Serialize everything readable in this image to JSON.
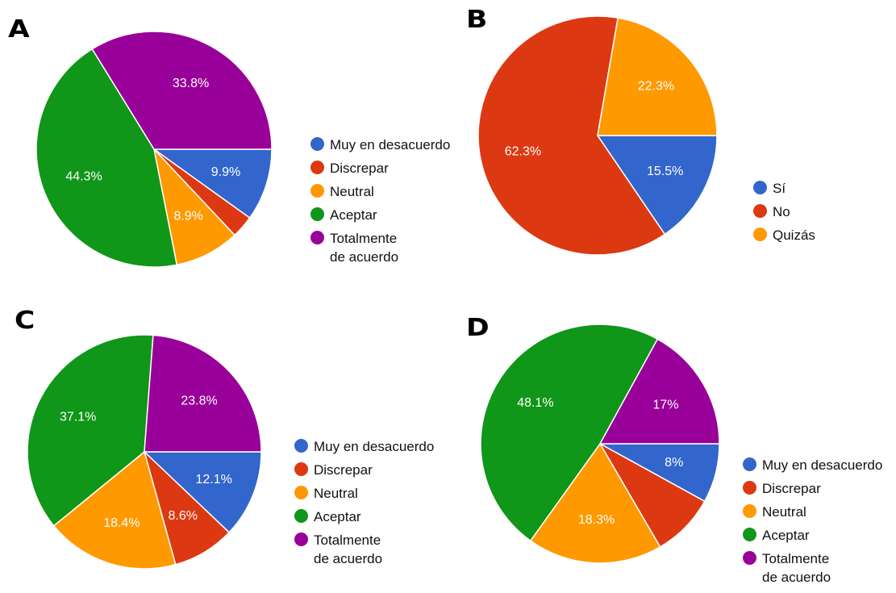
{
  "chart_data": [
    {
      "panel": "A",
      "type": "pie",
      "categories": [
        "Muy en desacuerdo",
        "Discrepar",
        "Neutral",
        "Aceptar",
        "Totalmente de acuerdo"
      ],
      "values": [
        9.9,
        3.1,
        8.9,
        44.3,
        33.8
      ],
      "data_labels": [
        "9.9%",
        "",
        "8.9%",
        "44.3%",
        "33.8%"
      ],
      "colors": [
        "#3366cc",
        "#dc3912",
        "#ff9900",
        "#109618",
        "#990099"
      ],
      "legend": [
        "Muy en desacuerdo",
        "Discrepar",
        "Neutral",
        "Aceptar",
        "Totalmente\nde acuerdo"
      ]
    },
    {
      "panel": "B",
      "type": "pie",
      "categories": [
        "Sí",
        "No",
        "Quizás"
      ],
      "values": [
        15.5,
        62.3,
        22.3
      ],
      "data_labels": [
        "15.5%",
        "62.3%",
        "22.3%"
      ],
      "colors": [
        "#3366cc",
        "#dc3912",
        "#ff9900"
      ],
      "legend": [
        "Sí",
        "No",
        "Quizás"
      ]
    },
    {
      "panel": "C",
      "type": "pie",
      "categories": [
        "Muy en desacuerdo",
        "Discrepar",
        "Neutral",
        "Aceptar",
        "Totalmente de acuerdo"
      ],
      "values": [
        12.1,
        8.6,
        18.4,
        37.1,
        23.8
      ],
      "data_labels": [
        "12.1%",
        "8.6%",
        "18.4%",
        "37.1%",
        "23.8%"
      ],
      "colors": [
        "#3366cc",
        "#dc3912",
        "#ff9900",
        "#109618",
        "#990099"
      ],
      "legend": [
        "Muy en desacuerdo",
        "Discrepar",
        "Neutral",
        "Aceptar",
        "Totalmente\nde acuerdo"
      ]
    },
    {
      "panel": "D",
      "type": "pie",
      "categories": [
        "Muy en desacuerdo",
        "Discrepar",
        "Neutral",
        "Aceptar",
        "Totalmente de acuerdo"
      ],
      "values": [
        8,
        8.6,
        18.3,
        48.1,
        17
      ],
      "data_labels": [
        "8%",
        "",
        "18.3%",
        "48.1%",
        "17%"
      ],
      "colors": [
        "#3366cc",
        "#dc3912",
        "#ff9900",
        "#109618",
        "#990099"
      ],
      "legend": [
        "Muy en desacuerdo",
        "Discrepar",
        "Neutral",
        "Aceptar",
        "Totalmente\nde acuerdo"
      ]
    }
  ]
}
